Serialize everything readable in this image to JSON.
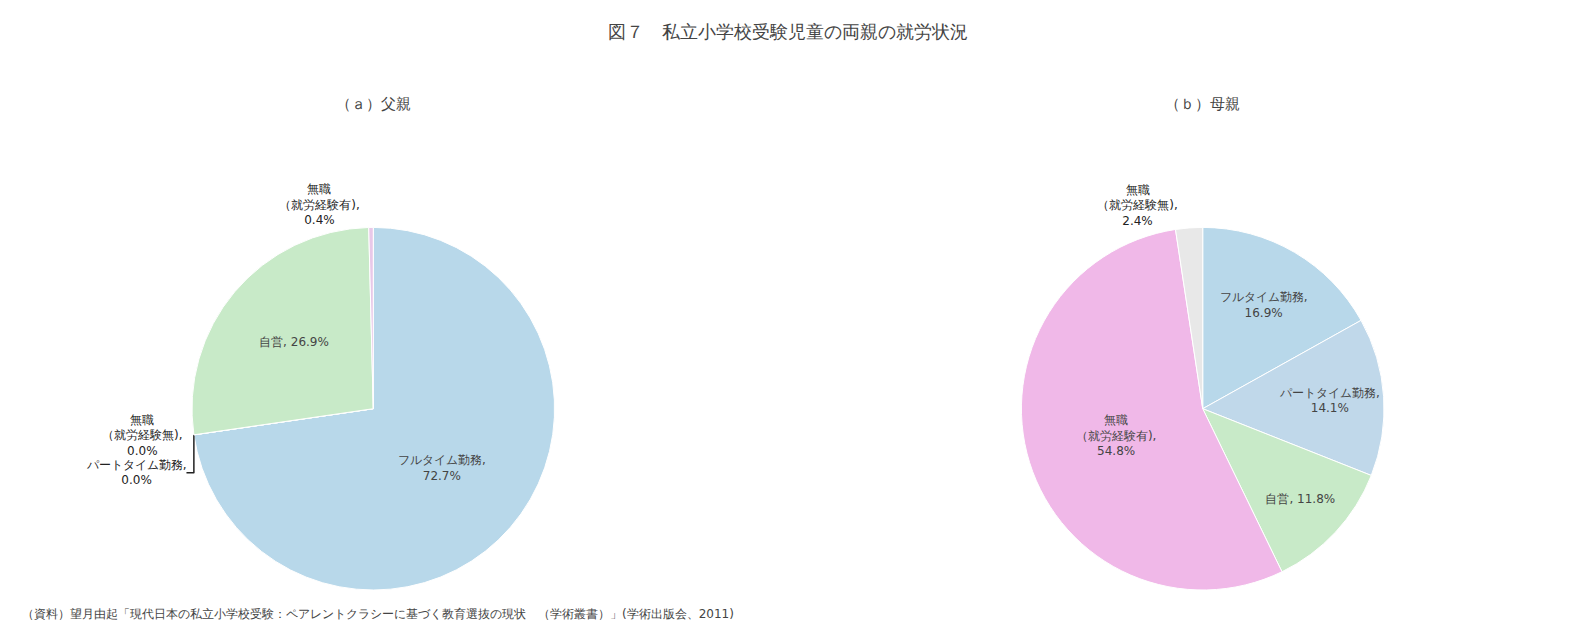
{
  "title": "図７　私立小学校受験児童の両親の就労状況",
  "caption": "（資料）望月由起「現代日本の私立小学校受験：ペアレントクラシーに基づく教育選抜の現状　（学術叢書）」(学術出版会、2011)",
  "chart_data": [
    {
      "type": "pie",
      "subtitle": "（ａ）父親",
      "categories": [
        "フルタイム勤務",
        "パートタイム勤務",
        "無職\n（就労経験無)",
        "自営",
        "無職\n（就労経験有)"
      ],
      "values": [
        72.7,
        0.001,
        0.001,
        26.9,
        0.4
      ],
      "value_labels": [
        "フルタイム勤務,\n72.7%",
        "パートタイム勤務,\n0.0%",
        "無職\n（就労経験無),\n0.0%",
        "自営, 26.9%",
        "無職\n（就労経験有),\n0.4%"
      ],
      "colors": [
        "#b8d8ea",
        "#e8e8e8",
        "#e0e0e0",
        "#c8eac8",
        "#e8c8e8"
      ],
      "data_labels": true
    },
    {
      "type": "pie",
      "subtitle": "（ｂ）母親",
      "categories": [
        "フルタイム勤務",
        "パートタイム勤務",
        "自営",
        "無職\n（就労経験有)",
        "無職\n（就労経験無)"
      ],
      "values": [
        16.9,
        14.1,
        11.8,
        54.8,
        2.4
      ],
      "value_labels": [
        "フルタイム勤務,\n16.9%",
        "パートタイム勤務,\n14.1%",
        "自営, 11.8%",
        "無職\n（就労経験有),\n54.8%",
        "無職\n（就労経験無),\n2.4%"
      ],
      "colors": [
        "#b8d8ea",
        "#c0d8ea",
        "#c8eac8",
        "#f0b8e8",
        "#e8e8e8"
      ],
      "data_labels": true
    }
  ]
}
